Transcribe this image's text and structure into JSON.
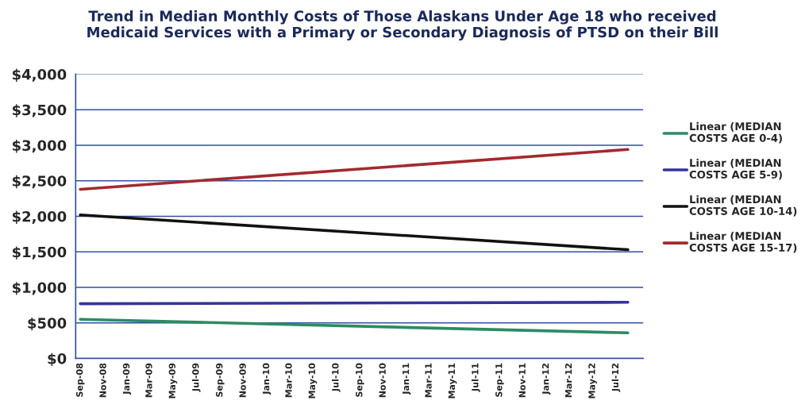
{
  "chart_data": {
    "type": "line",
    "title": "Trend in Median Monthly Costs of Those Alaskans Under Age 18 who received\nMedicaid Services with a Primary or Secondary Diagnosis of PTSD on their Bill",
    "series": [
      {
        "name": "Linear (MEDIAN\nCOSTS AGE 0-4)",
        "color": "#2e8b64",
        "x": [
          "2008-09",
          "2012-08"
        ],
        "values": [
          550,
          360
        ]
      },
      {
        "name": "Linear (MEDIAN\nCOSTS AGE 5-9)",
        "color": "#35349a",
        "x": [
          "2008-09",
          "2012-08"
        ],
        "values": [
          770,
          790
        ]
      },
      {
        "name": "Linear (MEDIAN\nCOSTS AGE 10-14)",
        "color": "#111111",
        "x": [
          "2008-09",
          "2012-08"
        ],
        "values": [
          2020,
          1530
        ]
      },
      {
        "name": "Linear (MEDIAN\nCOSTS AGE 15-17)",
        "color": "#a32a2e",
        "x": [
          "2008-09",
          "2012-08"
        ],
        "values": [
          2380,
          2940
        ]
      }
    ],
    "xlim": [
      "2008-08-20",
      "2012-09-10"
    ],
    "xticks": [
      {
        "value": "2008-09",
        "label": "Sep-08"
      },
      {
        "value": "2008-11",
        "label": "Nov-08"
      },
      {
        "value": "2009-01",
        "label": "Jan-09"
      },
      {
        "value": "2009-03",
        "label": "Mar-09"
      },
      {
        "value": "2009-05",
        "label": "May-09"
      },
      {
        "value": "2009-07",
        "label": "Jul-09"
      },
      {
        "value": "2009-09",
        "label": "Sep-09"
      },
      {
        "value": "2009-11",
        "label": "Nov-09"
      },
      {
        "value": "2010-01",
        "label": "Jan-10"
      },
      {
        "value": "2010-03",
        "label": "Mar-10"
      },
      {
        "value": "2010-05",
        "label": "May-10"
      },
      {
        "value": "2010-07",
        "label": "Jul-10"
      },
      {
        "value": "2010-09",
        "label": "Sep-10"
      },
      {
        "value": "2010-11",
        "label": "Nov-10"
      },
      {
        "value": "2011-01",
        "label": "Jan-11"
      },
      {
        "value": "2011-03",
        "label": "Mar-11"
      },
      {
        "value": "2011-05",
        "label": "May-11"
      },
      {
        "value": "2011-07",
        "label": "Jul-11"
      },
      {
        "value": "2011-09",
        "label": "Sep-11"
      },
      {
        "value": "2011-11",
        "label": "Nov-11"
      },
      {
        "value": "2012-01",
        "label": "Jan-12"
      },
      {
        "value": "2012-03",
        "label": "Mar-12"
      },
      {
        "value": "2012-05",
        "label": "May-12"
      },
      {
        "value": "2012-07",
        "label": "Jul-12"
      }
    ],
    "ylim": [
      0,
      4000
    ],
    "yticks": [
      {
        "value": 0,
        "label": "$0"
      },
      {
        "value": 500,
        "label": "$500"
      },
      {
        "value": 1000,
        "label": "$1,000"
      },
      {
        "value": 1500,
        "label": "$1,500"
      },
      {
        "value": 2000,
        "label": "$2,000"
      },
      {
        "value": 2500,
        "label": "$2,500"
      },
      {
        "value": 3000,
        "label": "$3,000"
      },
      {
        "value": 3500,
        "label": "$3,500"
      },
      {
        "value": 4000,
        "label": "$4,000"
      }
    ],
    "grid": "y",
    "legend": "right",
    "marker": "none",
    "line_style": "solid"
  }
}
